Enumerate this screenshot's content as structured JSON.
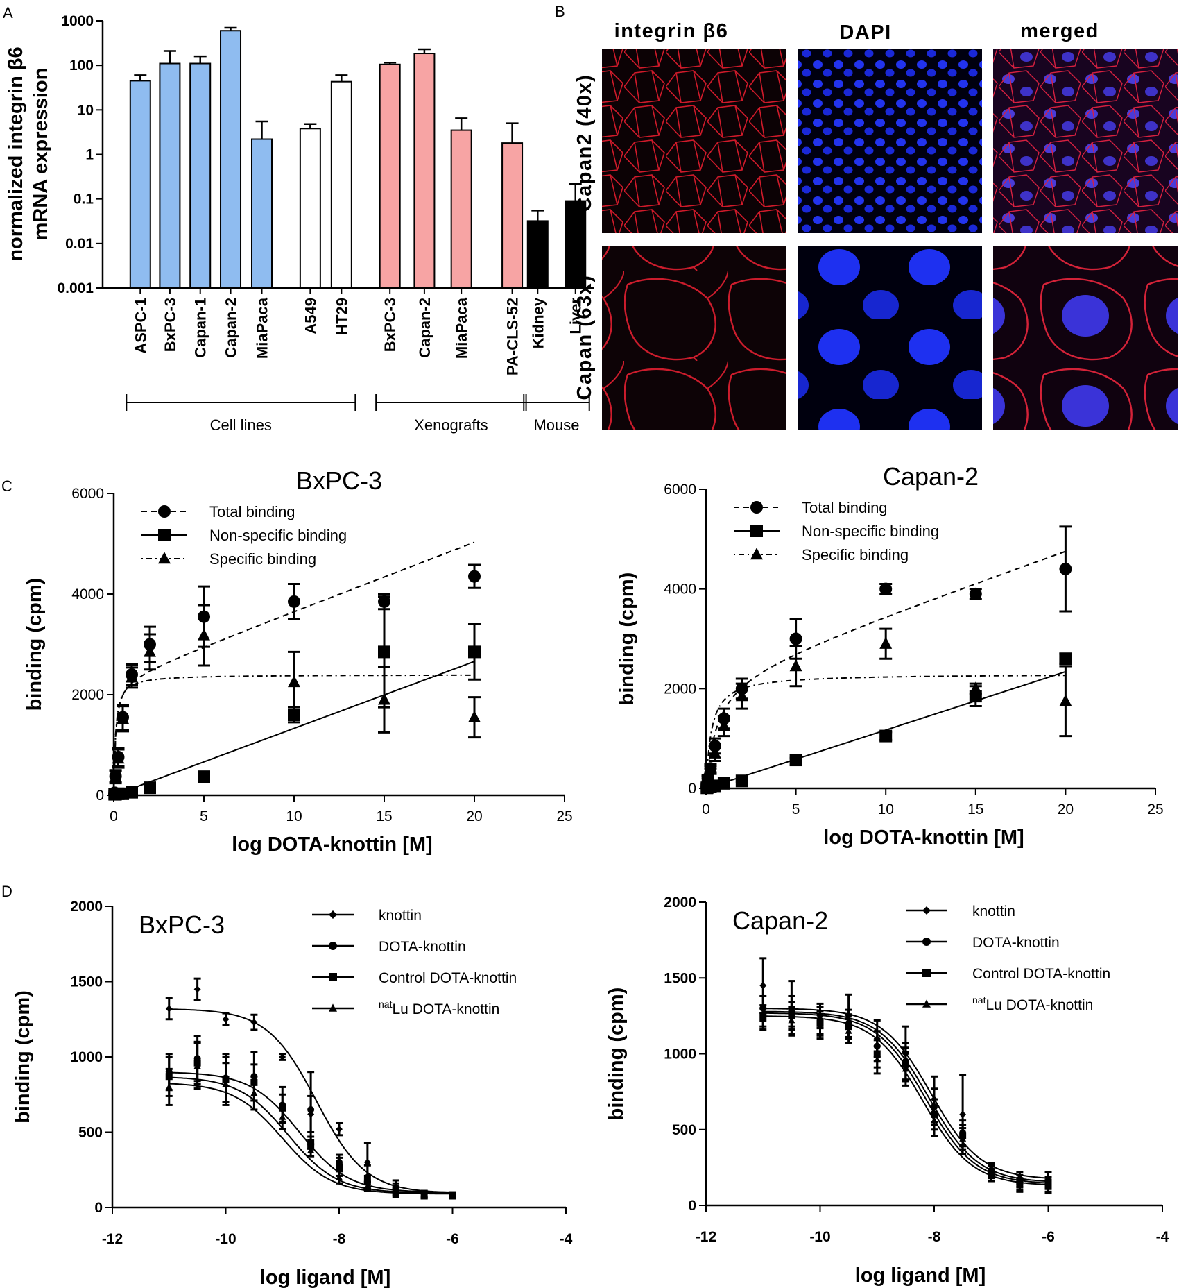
{
  "panels": {
    "A": "A",
    "B": "B",
    "C": "C",
    "D": "D"
  },
  "chart_data": [
    {
      "id": "A",
      "type": "bar",
      "scale": "log",
      "ylabel_lines": [
        "normalized integrin β6",
        "mRNA expression"
      ],
      "ylim": [
        0.001,
        1000
      ],
      "yticks": [
        "0.001",
        "0.01",
        "0.1",
        "1",
        "10",
        "100",
        "1000"
      ],
      "colors": {
        "cell_lines_pdac": "#8fbcf0",
        "cell_lines_other": "#ffffff",
        "xenografts": "#f7a4a4",
        "mouse": "#000000"
      },
      "bars": [
        {
          "label": "ASPC-1",
          "value": 45,
          "err": 60,
          "group": "cell_lines_pdac"
        },
        {
          "label": "BxPC-3",
          "value": 110,
          "err": 210,
          "group": "cell_lines_pdac"
        },
        {
          "label": "Capan-1",
          "value": 110,
          "err": 160,
          "group": "cell_lines_pdac"
        },
        {
          "label": "Capan-2",
          "value": 600,
          "err": 700,
          "group": "cell_lines_pdac"
        },
        {
          "label": "MiaPaca",
          "value": 2.2,
          "err": 5.5,
          "group": "cell_lines_pdac"
        },
        {
          "label": "A549",
          "value": 3.8,
          "err": 4.8,
          "group": "cell_lines_other"
        },
        {
          "label": "HT29",
          "value": 43,
          "err": 60,
          "group": "cell_lines_other"
        },
        {
          "label": "BxPC-3",
          "value": 105,
          "err": 115,
          "group": "xenografts"
        },
        {
          "label": "Capan-2",
          "value": 185,
          "err": 230,
          "group": "xenografts"
        },
        {
          "label": "MiaPaca",
          "value": 3.5,
          "err": 6.5,
          "group": "xenografts"
        },
        {
          "label": "PA-CLS-52",
          "value": 1.8,
          "err": 5.0,
          "group": "xenografts"
        },
        {
          "label": "Kidney",
          "value": 0.032,
          "err": 0.055,
          "group": "mouse"
        },
        {
          "label": "Liver",
          "value": 0.09,
          "err": 0.22,
          "group": "mouse"
        }
      ],
      "groups": [
        {
          "label": "Cell lines",
          "from": 0,
          "to": 6
        },
        {
          "label": "Xenografts",
          "from": 7,
          "to": 10
        },
        {
          "label": "Mouse",
          "from": 11,
          "to": 12
        }
      ]
    },
    {
      "id": "C1",
      "type": "scatter",
      "title": "BxPC-3",
      "xlabel": "log DOTA-knottin [M]",
      "ylabel": "binding (cpm)",
      "xlim": [
        0,
        25
      ],
      "ylim": [
        0,
        6000
      ],
      "xticks": [
        0,
        5,
        10,
        15,
        20,
        25
      ],
      "yticks": [
        0,
        2000,
        4000,
        6000
      ],
      "legend": [
        "Total binding",
        "Non-specific binding",
        "Specific binding"
      ],
      "series": [
        {
          "name": "Total binding",
          "marker": "circle",
          "dash": "8,6",
          "points": [
            [
              0.05,
              50,
              30
            ],
            [
              0.1,
              380,
              120
            ],
            [
              0.25,
              760,
              180
            ],
            [
              0.5,
              1550,
              250
            ],
            [
              1,
              2400,
              200
            ],
            [
              2,
              3000,
              350
            ],
            [
              5,
              3550,
              600
            ],
            [
              10,
              3850,
              350
            ],
            [
              15,
              3850,
              150
            ],
            [
              20,
              4350,
              230
            ]
          ],
          "curve": {
            "Bmax": 2300,
            "Kd": 0.1,
            "NS": 137
          }
        },
        {
          "name": "Non-specific binding",
          "marker": "square",
          "dash": "",
          "points": [
            [
              0.05,
              20,
              10
            ],
            [
              0.1,
              20,
              10
            ],
            [
              0.25,
              30,
              10
            ],
            [
              0.5,
              30,
              10
            ],
            [
              1,
              60,
              20
            ],
            [
              2,
              150,
              30
            ],
            [
              5,
              370,
              30
            ],
            [
              10,
              1600,
              150
            ],
            [
              15,
              2850,
              1100
            ],
            [
              20,
              2850,
              550
            ]
          ],
          "curve": {
            "Bmax": 0,
            "Kd": 1,
            "NS": 133
          }
        },
        {
          "name": "Specific binding",
          "marker": "triangle",
          "dash": "2,5,8,5",
          "points": [
            [
              0.05,
              30,
              20
            ],
            [
              0.1,
              360,
              120
            ],
            [
              0.25,
              730,
              180
            ],
            [
              0.5,
              1520,
              250
            ],
            [
              1,
              2340,
              200
            ],
            [
              2,
              2850,
              350
            ],
            [
              5,
              3180,
              600
            ],
            [
              10,
              2250,
              600
            ],
            [
              15,
              1900,
              650
            ],
            [
              20,
              1550,
              400
            ]
          ],
          "curve": {
            "Bmax": 2400,
            "Kd": 0.1,
            "NS": 0
          }
        }
      ]
    },
    {
      "id": "C2",
      "type": "scatter",
      "title": "Capan-2",
      "xlabel": "log DOTA-knottin [M]",
      "ylabel": "binding (cpm)",
      "xlim": [
        0,
        25
      ],
      "ylim": [
        0,
        6000
      ],
      "xticks": [
        0,
        5,
        10,
        15,
        20,
        25
      ],
      "yticks": [
        0,
        2000,
        4000,
        6000
      ],
      "legend": [
        "Total binding",
        "Non-specific binding",
        "Specific binding"
      ],
      "series": [
        {
          "name": "Total binding",
          "marker": "circle",
          "dash": "8,6",
          "points": [
            [
              0.05,
              50,
              30
            ],
            [
              0.1,
              200,
              60
            ],
            [
              0.25,
              400,
              80
            ],
            [
              0.5,
              850,
              150
            ],
            [
              1,
              1400,
              200
            ],
            [
              2,
              2000,
              200
            ],
            [
              5,
              3000,
              400
            ],
            [
              10,
              4000,
              100
            ],
            [
              15,
              3900,
              100
            ],
            [
              20,
              4400,
              850
            ]
          ],
          "curve": {
            "Bmax": 2300,
            "Kd": 0.6,
            "NS": 126
          }
        },
        {
          "name": "Non-specific binding",
          "marker": "square",
          "dash": "",
          "points": [
            [
              0.05,
              10,
              10
            ],
            [
              0.1,
              20,
              10
            ],
            [
              0.25,
              30,
              10
            ],
            [
              0.5,
              50,
              10
            ],
            [
              1,
              100,
              20
            ],
            [
              2,
              150,
              30
            ],
            [
              5,
              570,
              40
            ],
            [
              10,
              1050,
              80
            ],
            [
              15,
              1850,
              200
            ],
            [
              20,
              2600,
              100
            ]
          ],
          "curve": {
            "Bmax": 0,
            "Kd": 1,
            "NS": 117
          }
        },
        {
          "name": "Specific binding",
          "marker": "triangle",
          "dash": "2,5,8,5",
          "points": [
            [
              0.05,
              40,
              20
            ],
            [
              0.1,
              180,
              60
            ],
            [
              0.25,
              370,
              80
            ],
            [
              0.5,
              700,
              150
            ],
            [
              1,
              1250,
              200
            ],
            [
              2,
              1850,
              250
            ],
            [
              5,
              2450,
              400
            ],
            [
              10,
              2900,
              300
            ],
            [
              15,
              2000,
              100
            ],
            [
              20,
              1750,
              700
            ]
          ],
          "curve": {
            "Bmax": 2300,
            "Kd": 0.3,
            "NS": 0
          }
        }
      ]
    },
    {
      "id": "D1",
      "type": "line",
      "title": "BxPC-3",
      "xlabel": "log ligand [M]",
      "ylabel": "binding (cpm)",
      "xlim": [
        -12,
        -4
      ],
      "ylim": [
        0,
        2000
      ],
      "xticks": [
        -12,
        -10,
        -8,
        -6,
        -4
      ],
      "yticks": [
        0,
        500,
        1000,
        1500,
        2000
      ],
      "x": [
        -11,
        -10.5,
        -10,
        -9.5,
        -9,
        -8.5,
        -8,
        -7.5,
        -7,
        -6.5,
        -6
      ],
      "legend": [
        "knottin",
        "DOTA-knottin",
        "Control DOTA-knottin",
        "natLu DOTA-knottin"
      ],
      "series": [
        {
          "name": "knottin",
          "marker": "diamond",
          "top": 1320,
          "bottom": 95,
          "ic50": -8.4,
          "values": [
            1320,
            1450,
            1250,
            1230,
            1000,
            620,
            520,
            300,
            140,
            90,
            80
          ],
          "err": [
            70,
            70,
            40,
            50,
            20,
            120,
            40,
            130,
            40,
            20,
            20
          ]
        },
        {
          "name": "DOTA-knottin",
          "marker": "circle",
          "top": 900,
          "bottom": 100,
          "ic50": -8.7,
          "values": [
            900,
            990,
            860,
            870,
            680,
            650,
            300,
            200,
            120,
            90,
            80
          ],
          "err": [
            120,
            150,
            160,
            160,
            120,
            250,
            50,
            80,
            40,
            20,
            20
          ]
        },
        {
          "name": "Control DOTA-knottin",
          "marker": "square",
          "top": 870,
          "bottom": 95,
          "ic50": -8.9,
          "values": [
            870,
            960,
            850,
            830,
            660,
            430,
            270,
            170,
            110,
            80,
            80
          ],
          "err": [
            130,
            140,
            150,
            120,
            90,
            40,
            60,
            40,
            30,
            20,
            20
          ]
        },
        {
          "name": "natLu DOTA-knottin",
          "marker": "triangle",
          "top": 830,
          "bottom": 90,
          "ic50": -9.0,
          "values": [
            800,
            940,
            820,
            760,
            600,
            380,
            200,
            140,
            100,
            80,
            80
          ],
          "err": [
            120,
            150,
            140,
            110,
            80,
            40,
            40,
            30,
            30,
            20,
            20
          ]
        }
      ]
    },
    {
      "id": "D2",
      "type": "line",
      "title": "Capan-2",
      "xlabel": "log ligand [M]",
      "ylabel": "binding (cpm)",
      "xlim": [
        -12,
        -4
      ],
      "ylim": [
        0,
        2000
      ],
      "xticks": [
        -12,
        -10,
        -8,
        -6,
        -4
      ],
      "yticks": [
        0,
        500,
        1000,
        1500,
        2000
      ],
      "x": [
        -11,
        -10.5,
        -10,
        -9.5,
        -9,
        -8.5,
        -8,
        -7.5,
        -7,
        -6.5,
        -6
      ],
      "legend": [
        "knottin",
        "DOTA-knottin",
        "Control DOTA-knottin",
        "natLu DOTA-knottin"
      ],
      "series": [
        {
          "name": "knottin",
          "marker": "diamond",
          "top": 1300,
          "bottom": 170,
          "ic50": -8.05,
          "values": [
            1450,
            1300,
            1250,
            1250,
            1100,
            1000,
            700,
            600,
            240,
            180,
            170
          ],
          "err": [
            180,
            180,
            80,
            140,
            120,
            180,
            150,
            260,
            40,
            40,
            50
          ]
        },
        {
          "name": "DOTA-knottin",
          "marker": "circle",
          "top": 1280,
          "bottom": 150,
          "ic50": -8.1,
          "values": [
            1300,
            1280,
            1220,
            1200,
            1050,
            950,
            650,
            480,
            230,
            160,
            150
          ],
          "err": [
            80,
            100,
            90,
            90,
            100,
            120,
            120,
            80,
            40,
            40,
            40
          ]
        },
        {
          "name": "Control DOTA-knottin",
          "marker": "square",
          "top": 1270,
          "bottom": 140,
          "ic50": -8.15,
          "values": [
            1250,
            1250,
            1200,
            1180,
            1000,
            930,
            600,
            460,
            220,
            140,
            130
          ],
          "err": [
            70,
            90,
            80,
            80,
            90,
            110,
            100,
            70,
            40,
            40,
            40
          ]
        },
        {
          "name": "natLu DOTA-knottin",
          "marker": "triangle",
          "top": 1250,
          "bottom": 130,
          "ic50": -8.2,
          "values": [
            1230,
            1220,
            1180,
            1150,
            960,
            900,
            560,
            440,
            200,
            130,
            120
          ],
          "err": [
            70,
            90,
            80,
            80,
            90,
            110,
            100,
            70,
            40,
            40,
            40
          ]
        }
      ]
    }
  ],
  "micrographs": {
    "col_headers": [
      "integrin β6",
      "DAPI",
      "merged"
    ],
    "row_labels": [
      "Capan2 (40x)",
      "Capan (63x)"
    ]
  }
}
